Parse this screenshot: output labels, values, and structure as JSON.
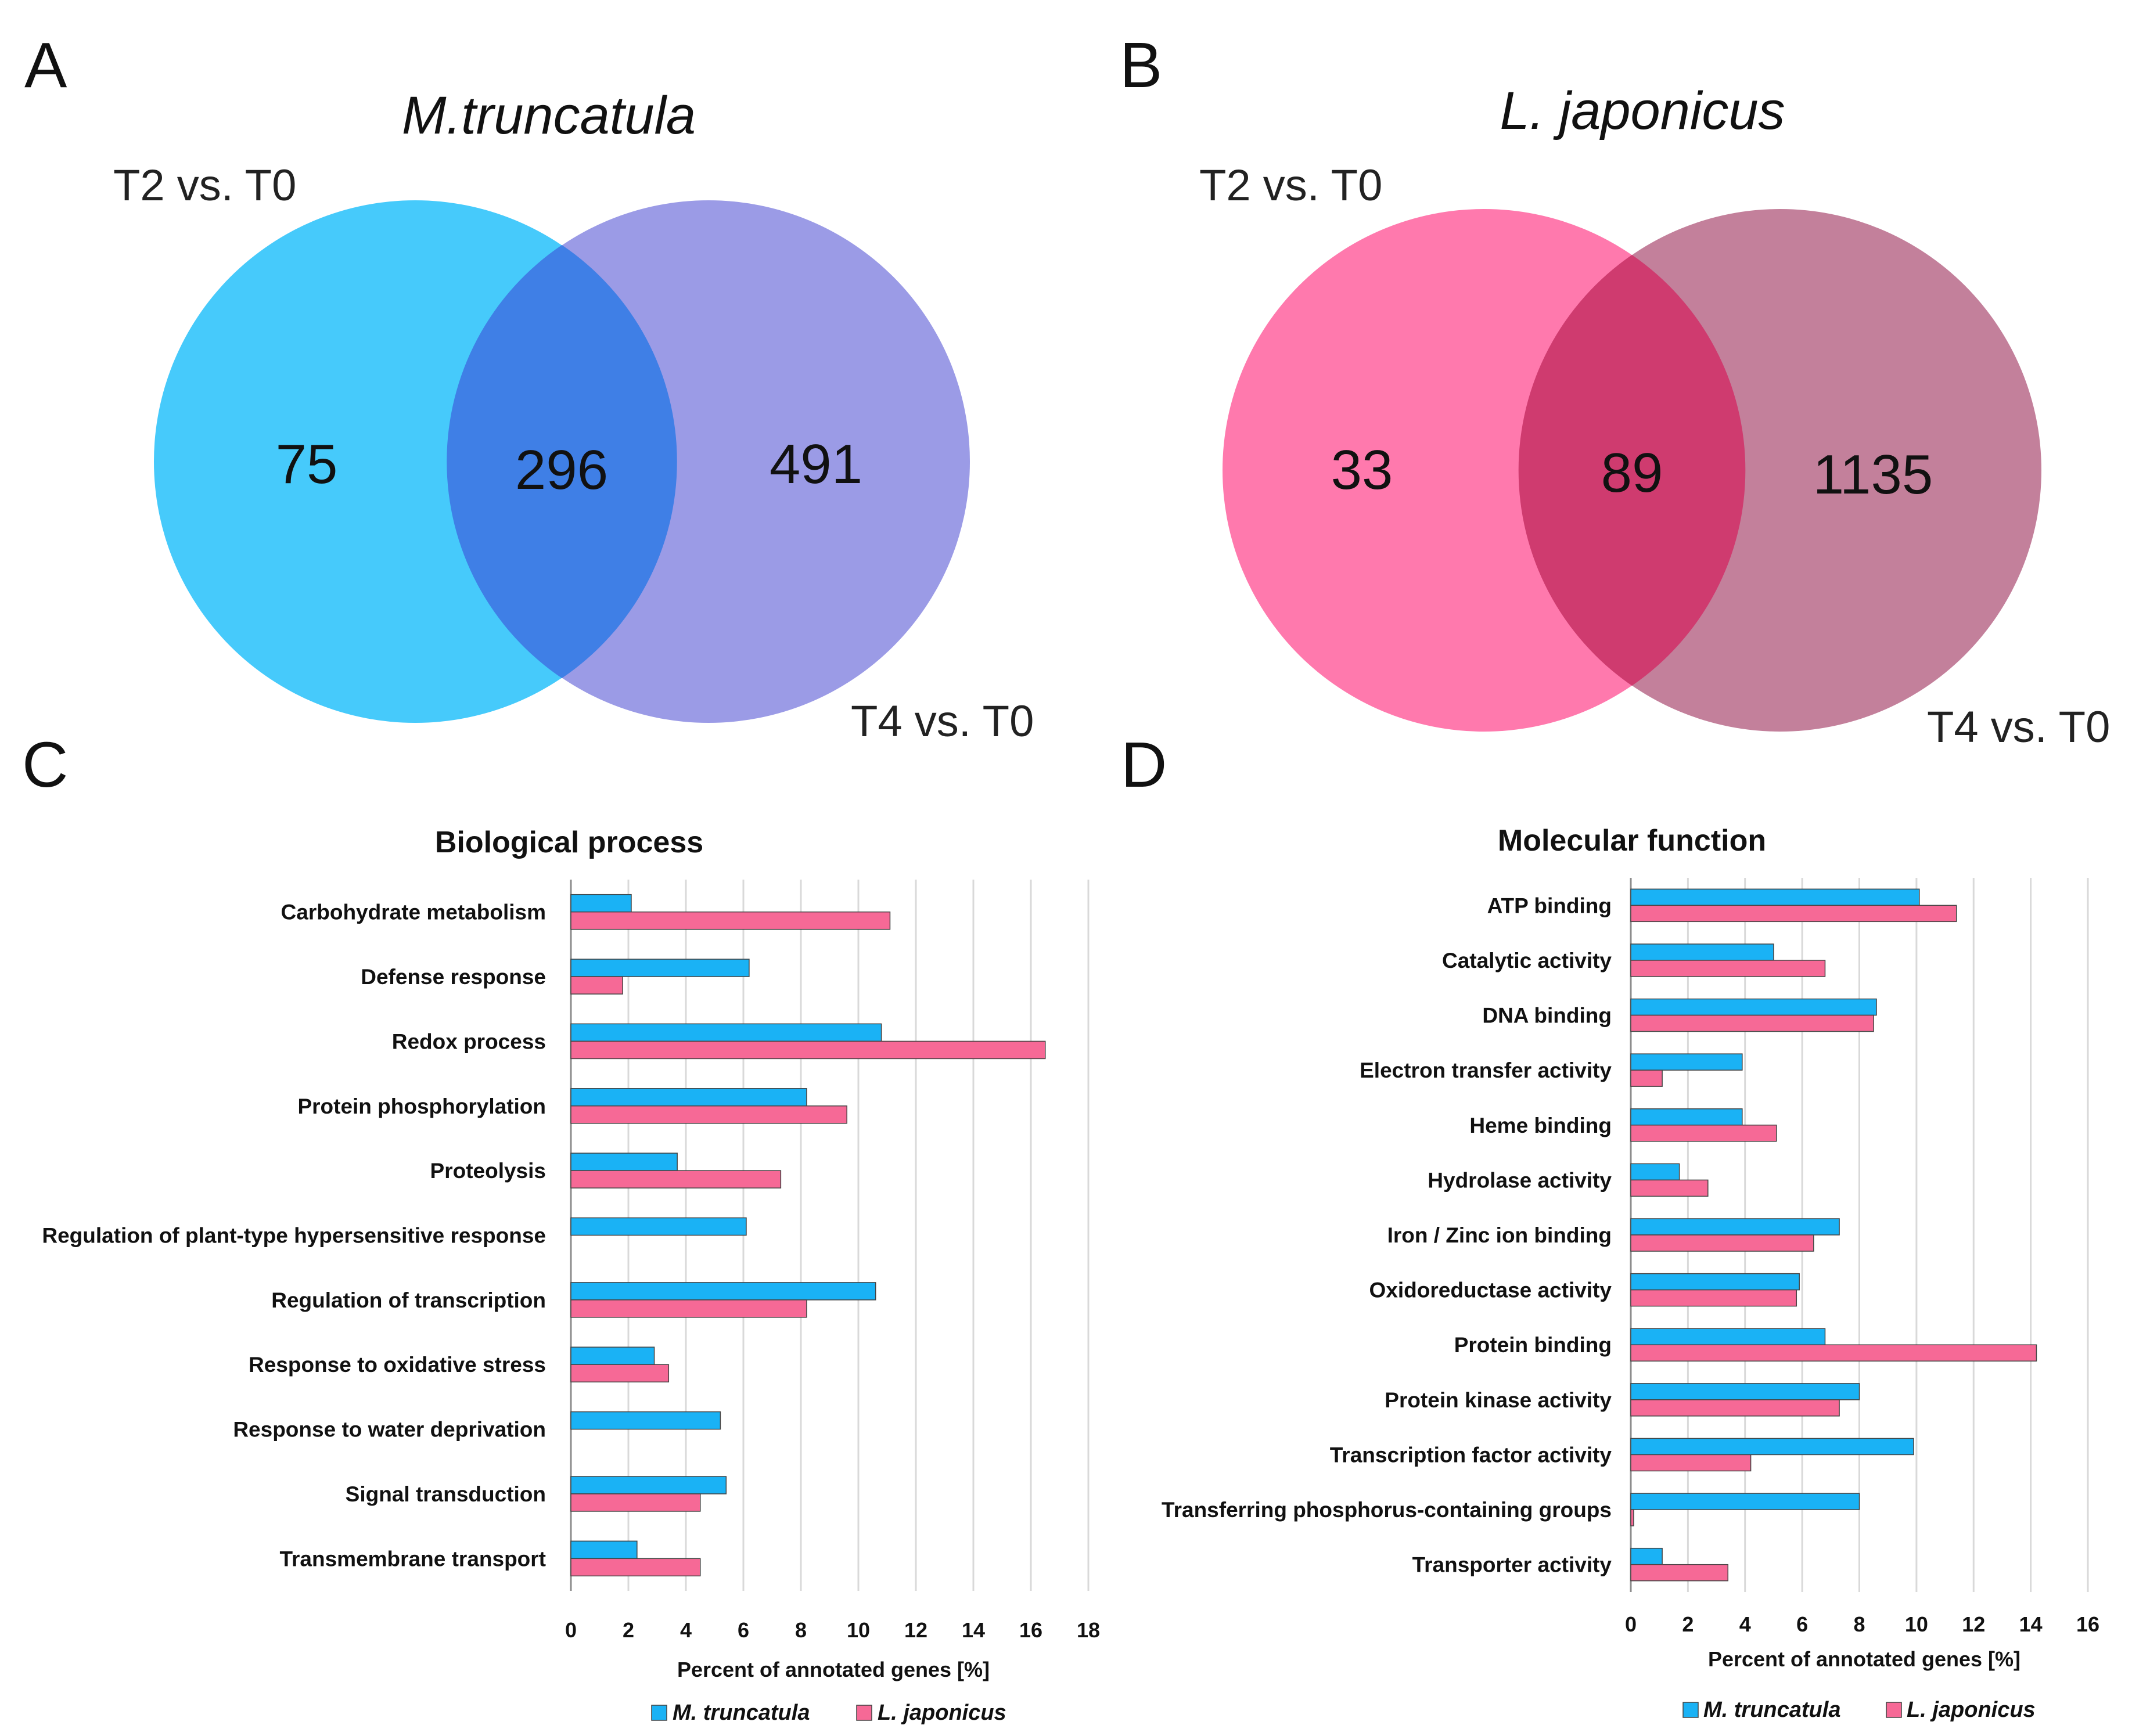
{
  "colors": {
    "mt_circle1": "#36c6fb",
    "mt_circle2": "#8a8ae2",
    "lj_circle1": "#ff6ea6",
    "lj_circle2": "#b86a8a",
    "bar_mt": "#1ab2f5",
    "bar_lj": "#f66996",
    "bar_outline": "#444444"
  },
  "panels": {
    "a": {
      "letter": "A"
    },
    "b": {
      "letter": "B"
    },
    "c": {
      "letter": "C"
    },
    "d": {
      "letter": "D"
    }
  },
  "chart_data": [
    {
      "type": "venn",
      "panel": "A",
      "title": "M.truncatula",
      "sets": [
        "T2 vs. T0",
        "T4 vs. T0"
      ],
      "only_first": 75,
      "overlap": 296,
      "only_second": 491
    },
    {
      "type": "venn",
      "panel": "B",
      "title": "L. japonicus",
      "sets": [
        "T2 vs. T0",
        "T4 vs. T0"
      ],
      "only_first": 33,
      "overlap": 89,
      "only_second": 1135
    },
    {
      "type": "bar",
      "orientation": "horizontal",
      "panel": "C",
      "title": "Biological process",
      "xlabel": "Percent of annotated genes [%]",
      "xlim": [
        0,
        18
      ],
      "xticks": [
        0,
        2,
        4,
        6,
        8,
        10,
        12,
        14,
        16,
        18
      ],
      "grid": true,
      "legend_position": "bottom",
      "categories": [
        "Carbohydrate metabolism",
        "Defense response",
        "Redox process",
        "Protein phosphorylation",
        "Proteolysis",
        "Regulation of plant-type hypersensitive response",
        "Regulation of transcription",
        "Response to oxidative stress",
        "Response to water deprivation",
        "Signal transduction",
        "Transmembrane transport"
      ],
      "series": [
        {
          "name": "M. truncatula",
          "values": [
            2.1,
            6.2,
            10.8,
            8.2,
            3.7,
            6.1,
            10.6,
            2.9,
            5.2,
            5.4,
            2.3
          ]
        },
        {
          "name": "L. japonicus",
          "values": [
            11.1,
            1.8,
            16.5,
            9.6,
            7.3,
            0,
            8.2,
            3.4,
            0,
            4.5,
            4.5
          ]
        }
      ]
    },
    {
      "type": "bar",
      "orientation": "horizontal",
      "panel": "D",
      "title": "Molecular function",
      "xlabel": "Percent of annotated genes [%]",
      "xlim": [
        0,
        16
      ],
      "xticks": [
        0,
        2,
        4,
        6,
        8,
        10,
        12,
        14,
        16
      ],
      "grid": true,
      "legend_position": "bottom",
      "categories": [
        "ATP binding",
        "Catalytic activity",
        "DNA binding",
        "Electron transfer activity",
        "Heme binding",
        "Hydrolase activity",
        "Iron / Zinc ion binding",
        "Oxidoreductase activity",
        "Protein binding",
        "Protein kinase activity",
        "Transcription factor activity",
        "Transferring phosphorus-containing groups",
        "Transporter activity"
      ],
      "series": [
        {
          "name": "M. truncatula",
          "values": [
            10.1,
            5.0,
            8.6,
            3.9,
            3.9,
            1.7,
            7.3,
            5.9,
            6.8,
            8.0,
            9.9,
            8.0,
            1.1
          ]
        },
        {
          "name": "L. japonicus",
          "values": [
            11.4,
            6.8,
            8.5,
            1.1,
            5.1,
            2.7,
            6.4,
            5.8,
            14.2,
            7.3,
            4.2,
            0.1,
            3.4
          ]
        }
      ]
    }
  ]
}
